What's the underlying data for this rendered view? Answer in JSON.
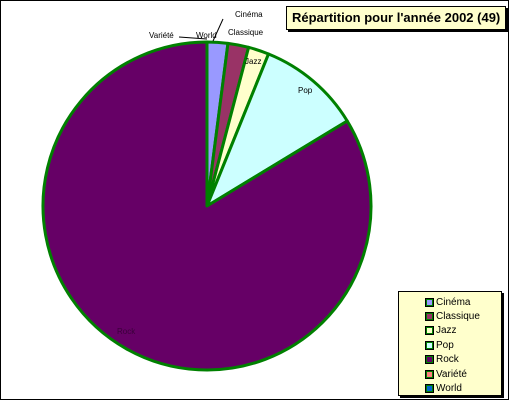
{
  "chart_data": {
    "type": "pie",
    "title": "Répartition pour l'année 2002 (49)",
    "slices": [
      {
        "label": "Cinéma",
        "value": 1,
        "color": "#9999ff"
      },
      {
        "label": "Classique",
        "value": 1,
        "color": "#993366"
      },
      {
        "label": "Jazz",
        "value": 1,
        "color": "#ffffcc"
      },
      {
        "label": "Pop",
        "value": 5,
        "color": "#ccffff"
      },
      {
        "label": "Rock",
        "value": 41,
        "color": "#660066"
      },
      {
        "label": "Variété",
        "value": 0,
        "color": "#ff8080"
      },
      {
        "label": "World",
        "value": 0,
        "color": "#0066cc"
      }
    ],
    "slice_outline_color": "#008000",
    "legend_placement": "bottom-right"
  }
}
